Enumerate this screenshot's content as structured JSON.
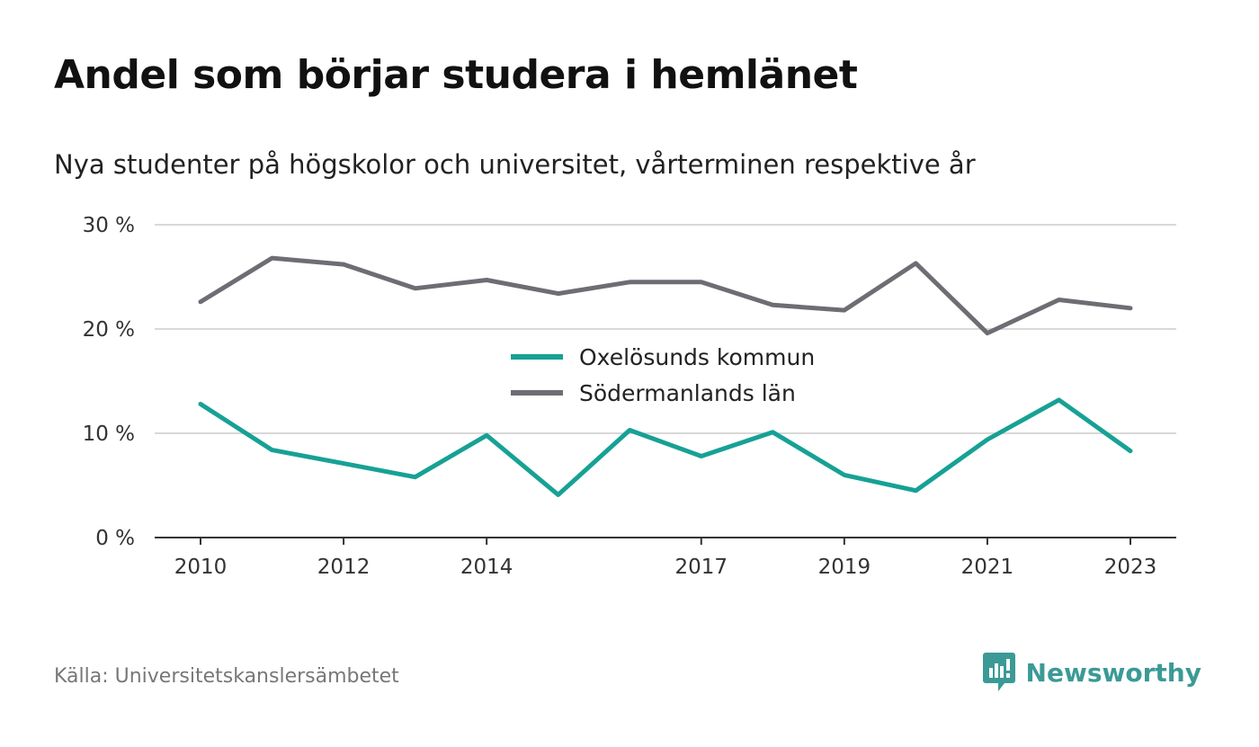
{
  "title": "Andel som börjar studera i hemlänet",
  "subtitle": "Nya studenter på högskolor och universitet, vårterminen respektive år",
  "source": "Källa: Universitetskanslersämbetet",
  "brand": {
    "name": "Newsworthy",
    "color": "#3b9a96"
  },
  "chart_data": {
    "type": "line",
    "x": [
      2010,
      2011,
      2012,
      2013,
      2014,
      2015,
      2016,
      2017,
      2018,
      2019,
      2020,
      2021,
      2022,
      2023
    ],
    "x_tick_labels": [
      "2010",
      "2012",
      "2014",
      "2017",
      "2019",
      "2021",
      "2023"
    ],
    "y_ticks": [
      0,
      10,
      20,
      30
    ],
    "y_tick_labels": [
      "0 %",
      "10 %",
      "20 %",
      "30 %"
    ],
    "ylim": [
      0,
      30
    ],
    "grid": true,
    "legend_position": "center",
    "series": [
      {
        "name": "Oxelösunds kommun",
        "color": "#17a195",
        "values": [
          12.8,
          8.4,
          7.1,
          5.8,
          9.8,
          4.1,
          10.3,
          7.8,
          10.1,
          6.0,
          4.5,
          9.4,
          13.2,
          8.3
        ]
      },
      {
        "name": "Södermanlands län",
        "color": "#6e6d73",
        "values": [
          22.6,
          26.8,
          26.2,
          23.9,
          24.7,
          23.4,
          24.5,
          24.5,
          22.3,
          21.8,
          26.3,
          19.6,
          22.8,
          22.0
        ]
      }
    ]
  }
}
